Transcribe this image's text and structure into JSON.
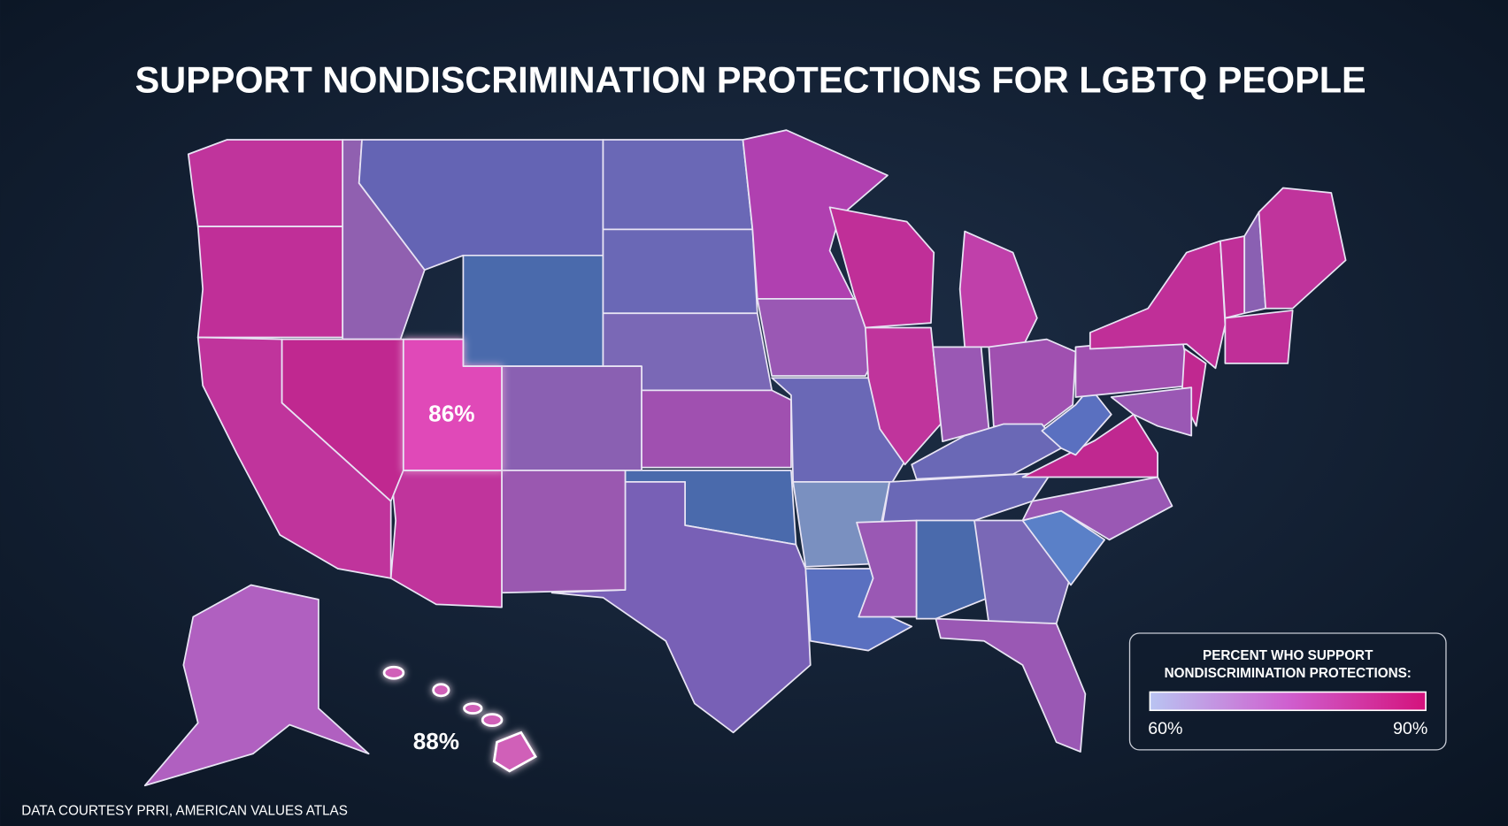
{
  "title": "SUPPORT NONDISCRIMINATION PROTECTIONS FOR LGBTQ PEOPLE",
  "map_labels": [
    "86%",
    "88%"
  ],
  "legend": {
    "title_lines": [
      "PERCENT WHO SUPPORT",
      "NONDISCRIMINATION PROTECTIONS:"
    ],
    "min_label": "60%",
    "max_label": "90%",
    "colors": [
      "#b9c4f2",
      "#cf5fcf",
      "#d4127c"
    ]
  },
  "source": "DATA COURTESY PRRI, AMERICAN VALUES ATLAS"
}
